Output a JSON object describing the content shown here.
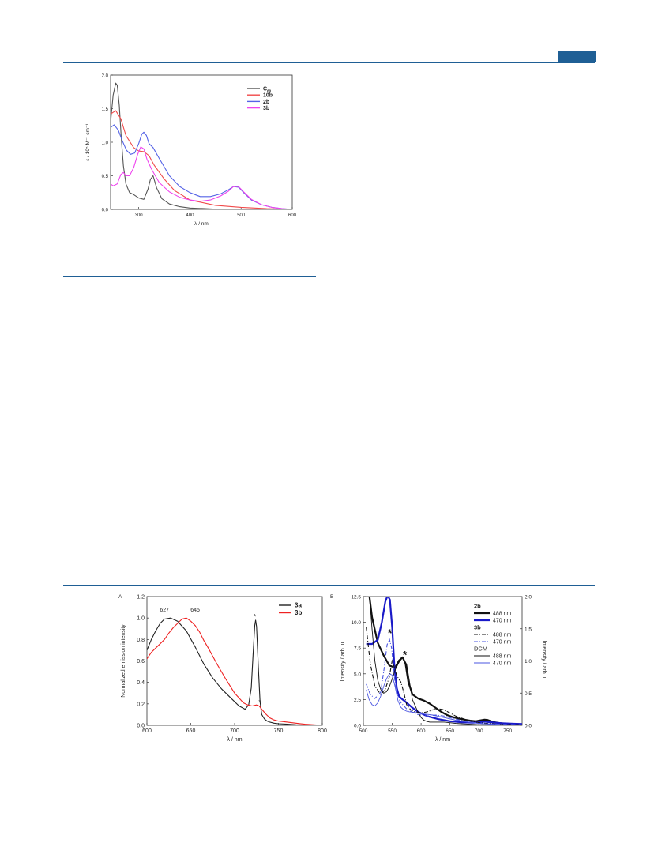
{
  "page": {
    "header_tab_color": "#1f5f95",
    "rule_color": "#1f5f95"
  },
  "chart_data": [
    {
      "id": "uv-vis",
      "type": "line",
      "title": "",
      "xlabel": "λ / nm",
      "ylabel": "ε / 10⁵ M⁻¹ cm⁻¹",
      "xlim": [
        245,
        600
      ],
      "ylim": [
        0,
        2.0
      ],
      "xticks": [
        300,
        400,
        500,
        600
      ],
      "yticks": [
        0.0,
        0.5,
        1.0,
        1.5,
        2.0
      ],
      "ytick_labels": [
        "0.0",
        "0.5",
        "1.0",
        "1.5",
        "2.0"
      ],
      "grid": false,
      "legend_position": "top-right",
      "series": [
        {
          "name": "C60",
          "name_main": "C",
          "name_sub": "60",
          "color": "#555555",
          "x": [
            245,
            250,
            255,
            258,
            262,
            266,
            270,
            275,
            282,
            290,
            300,
            310,
            318,
            323,
            328,
            335,
            345,
            360,
            380,
            400,
            430,
            460
          ],
          "y": [
            1.3,
            1.7,
            1.88,
            1.85,
            1.55,
            1.05,
            0.65,
            0.38,
            0.25,
            0.22,
            0.17,
            0.15,
            0.3,
            0.45,
            0.5,
            0.32,
            0.16,
            0.08,
            0.04,
            0.02,
            0.01,
            0.0
          ]
        },
        {
          "name": "10b",
          "color": "#f04a4a",
          "x": [
            245,
            255,
            265,
            275,
            290,
            300,
            310,
            320,
            330,
            350,
            370,
            400,
            450,
            500,
            550,
            600
          ],
          "y": [
            1.42,
            1.47,
            1.35,
            1.1,
            0.92,
            0.87,
            0.86,
            0.8,
            0.66,
            0.45,
            0.28,
            0.14,
            0.06,
            0.03,
            0.01,
            0.0
          ]
        },
        {
          "name": "2b",
          "color": "#5563e6",
          "x": [
            245,
            252,
            260,
            268,
            276,
            284,
            292,
            300,
            306,
            310,
            315,
            320,
            328,
            340,
            360,
            380,
            400,
            420,
            440,
            460,
            475,
            485,
            495,
            505,
            520,
            540,
            560,
            580,
            600
          ],
          "y": [
            1.22,
            1.26,
            1.18,
            1.02,
            0.88,
            0.82,
            0.84,
            0.98,
            1.12,
            1.15,
            1.1,
            0.98,
            0.92,
            0.76,
            0.5,
            0.34,
            0.25,
            0.19,
            0.19,
            0.23,
            0.29,
            0.34,
            0.33,
            0.25,
            0.14,
            0.07,
            0.03,
            0.01,
            0.0
          ]
        },
        {
          "name": "3b",
          "color": "#ee44ee",
          "x": [
            245,
            250,
            258,
            265,
            270,
            275,
            282,
            290,
            298,
            304,
            310,
            316,
            325,
            340,
            360,
            380,
            400,
            420,
            440,
            460,
            475,
            485,
            495,
            505,
            520,
            540,
            560,
            580,
            600
          ],
          "y": [
            0.38,
            0.35,
            0.38,
            0.52,
            0.55,
            0.5,
            0.5,
            0.62,
            0.82,
            0.93,
            0.9,
            0.75,
            0.6,
            0.4,
            0.26,
            0.18,
            0.14,
            0.12,
            0.14,
            0.2,
            0.27,
            0.34,
            0.34,
            0.26,
            0.15,
            0.07,
            0.03,
            0.01,
            0.0
          ]
        }
      ]
    },
    {
      "id": "emission-A",
      "type": "line",
      "panel_label": "A",
      "title": "",
      "xlabel": "λ / nm",
      "ylabel": "Normalized emission intensity",
      "xlim": [
        600,
        800
      ],
      "ylim": [
        0,
        1.2
      ],
      "xticks": [
        600,
        650,
        700,
        750,
        800
      ],
      "yticks": [
        0.0,
        0.2,
        0.4,
        0.6,
        0.8,
        1.0,
        1.2
      ],
      "ytick_labels": [
        "0.0",
        "0.2",
        "0.4",
        "0.6",
        "0.8",
        "1.0",
        "1.2"
      ],
      "grid": false,
      "legend_position": "top-right",
      "annotations": [
        {
          "text": "627",
          "x": 620,
          "y": 1.06
        },
        {
          "text": "645",
          "x": 655,
          "y": 1.06
        },
        {
          "text": "*",
          "x": 723,
          "y": 1.02
        },
        {
          "text": "*",
          "x": 729,
          "y": 0.22
        }
      ],
      "series": [
        {
          "name": "3a",
          "color": "#222222",
          "x": [
            600,
            605,
            610,
            615,
            620,
            627,
            635,
            645,
            655,
            665,
            675,
            685,
            695,
            705,
            712,
            716,
            719,
            721,
            723,
            724,
            725,
            727,
            729,
            731,
            734,
            737,
            740,
            745,
            750,
            760,
            770,
            780,
            790,
            800
          ],
          "y": [
            0.7,
            0.8,
            0.88,
            0.95,
            0.99,
            1.0,
            0.97,
            0.88,
            0.73,
            0.57,
            0.44,
            0.34,
            0.26,
            0.18,
            0.15,
            0.19,
            0.35,
            0.65,
            0.93,
            0.98,
            0.92,
            0.55,
            0.22,
            0.1,
            0.06,
            0.04,
            0.03,
            0.02,
            0.015,
            0.01,
            0.005,
            0.003,
            0.002,
            0.001
          ]
        },
        {
          "name": "3b",
          "color": "#ee2222",
          "x": [
            600,
            605,
            610,
            615,
            620,
            625,
            630,
            635,
            640,
            645,
            650,
            655,
            660,
            665,
            670,
            680,
            690,
            700,
            710,
            715,
            720,
            725,
            728,
            731,
            735,
            740,
            745,
            750,
            760,
            770,
            780,
            790,
            800
          ],
          "y": [
            0.62,
            0.68,
            0.72,
            0.76,
            0.8,
            0.86,
            0.91,
            0.95,
            0.99,
            1.0,
            0.97,
            0.93,
            0.87,
            0.79,
            0.72,
            0.57,
            0.43,
            0.3,
            0.21,
            0.19,
            0.18,
            0.19,
            0.18,
            0.15,
            0.11,
            0.07,
            0.05,
            0.04,
            0.03,
            0.02,
            0.01,
            0.005,
            0.0
          ]
        }
      ]
    },
    {
      "id": "emission-B",
      "type": "line",
      "panel_label": "B",
      "title": "",
      "xlabel": "λ / nm",
      "ylabel": "Intensity / arb. u.",
      "ylabel_right": "Intensity / arb. u.",
      "xlim": [
        500,
        775
      ],
      "ylim": [
        0,
        12.5
      ],
      "ylim_right": [
        0,
        2.0
      ],
      "xticks": [
        500,
        550,
        600,
        650,
        700,
        750
      ],
      "yticks": [
        0.0,
        2.5,
        5.0,
        7.5,
        10.0,
        12.5
      ],
      "ytick_labels": [
        "0.0",
        "2.5",
        "5.0",
        "7.5",
        "10.0",
        "12.5"
      ],
      "yticks_right": [
        0.0,
        0.5,
        1.0,
        1.5,
        2.0
      ],
      "ytick_labels_right": [
        "0.0",
        "0.5",
        "1.0",
        "1.5",
        "2.0"
      ],
      "grid": false,
      "legend_position": "top-right",
      "legend_groups": [
        "2b",
        "3b",
        "DCM"
      ],
      "annotations": [
        {
          "text": "*",
          "x": 546,
          "y": 8.9
        },
        {
          "text": "*",
          "x": 572,
          "y": 6.8
        }
      ],
      "series": [
        {
          "name": "488 nm",
          "group": "2b",
          "color": "#111111",
          "style": "solid",
          "width": 2.2,
          "x": [
            505,
            515,
            525,
            535,
            545,
            555,
            562,
            568,
            573,
            578,
            585,
            595,
            605,
            615,
            625,
            635,
            645,
            655,
            665,
            675,
            685,
            695,
            700,
            705,
            710,
            715,
            720,
            725,
            735,
            750,
            765,
            775
          ],
          "y": [
            15,
            10.5,
            8.0,
            6.8,
            5.8,
            5.6,
            6.3,
            6.6,
            6.0,
            4.2,
            3.0,
            2.6,
            2.4,
            2.1,
            1.7,
            1.3,
            1.0,
            0.8,
            0.65,
            0.55,
            0.45,
            0.4,
            0.45,
            0.5,
            0.55,
            0.52,
            0.42,
            0.32,
            0.22,
            0.15,
            0.12,
            0.1
          ]
        },
        {
          "name": "470 nm",
          "group": "2b",
          "color": "#1a1ac8",
          "style": "solid",
          "width": 2.2,
          "x": [
            505,
            515,
            525,
            532,
            538,
            542,
            546,
            550,
            554,
            558,
            562,
            568,
            575,
            585,
            595,
            610,
            630,
            650,
            670,
            690,
            700,
            710,
            720,
            740,
            760,
            775
          ],
          "y": [
            7.9,
            7.9,
            8.3,
            10.0,
            12.0,
            12.6,
            12.2,
            9.5,
            5.5,
            3.6,
            2.8,
            2.5,
            2.2,
            1.7,
            1.3,
            0.9,
            0.6,
            0.4,
            0.3,
            0.25,
            0.3,
            0.35,
            0.3,
            0.2,
            0.15,
            0.12
          ]
        },
        {
          "name": "488 nm",
          "group": "3b",
          "color": "#111111",
          "style": "dashdot",
          "width": 1.1,
          "x": [
            505,
            512,
            520,
            530,
            538,
            545,
            550,
            558,
            565,
            570,
            575,
            582,
            590,
            600,
            610,
            620,
            630,
            640,
            650,
            660,
            675,
            690,
            710,
            730,
            750,
            775
          ],
          "y": [
            9.5,
            6.0,
            3.8,
            3.0,
            3.5,
            4.7,
            6.3,
            4.8,
            4.2,
            3.2,
            2.0,
            1.5,
            1.3,
            1.2,
            1.3,
            1.5,
            1.6,
            1.5,
            1.2,
            0.9,
            0.6,
            0.35,
            0.2,
            0.12,
            0.08,
            0.05
          ]
        },
        {
          "name": "470 nm",
          "group": "3b",
          "color": "#4a55e0",
          "style": "dashdot",
          "width": 1.1,
          "x": [
            505,
            512,
            520,
            530,
            536,
            541,
            545,
            549,
            553,
            558,
            565,
            575,
            590,
            610,
            625,
            640,
            660,
            680,
            700,
            720,
            750,
            775
          ],
          "y": [
            4.0,
            3.0,
            2.6,
            3.2,
            5.5,
            7.8,
            8.4,
            7.5,
            5.0,
            3.0,
            2.2,
            1.6,
            1.1,
            0.9,
            1.0,
            0.9,
            0.6,
            0.35,
            0.2,
            0.12,
            0.08,
            0.05
          ]
        },
        {
          "name": "488 nm",
          "group": "DCM",
          "color": "#111111",
          "style": "solid",
          "width": 0.9,
          "axis": "right",
          "x": [
            505,
            510,
            515,
            520,
            525,
            530,
            535,
            540,
            545,
            550,
            555,
            562,
            568,
            575,
            585,
            595,
            600,
            605,
            610,
            615,
            620,
            625,
            630,
            635,
            640,
            650,
            660,
            670,
            680,
            690,
            700,
            720,
            740,
            760,
            775
          ],
          "y": [
            2.6,
            2.1,
            1.5,
            1.0,
            0.7,
            0.56,
            0.5,
            0.52,
            0.6,
            0.72,
            0.86,
            0.98,
            1.05,
            0.95,
            0.4,
            0.2,
            0.12,
            0.08,
            0.06,
            0.05,
            0.05,
            0.05,
            0.05,
            0.05,
            0.05,
            0.04,
            0.03,
            0.025,
            0.02,
            0.015,
            0.01,
            0.01,
            0.005,
            0.005,
            0.0
          ]
        },
        {
          "name": "470 nm",
          "group": "DCM",
          "color": "#4a55e0",
          "style": "solid",
          "width": 0.9,
          "axis": "right",
          "x": [
            505,
            510,
            515,
            520,
            525,
            530,
            535,
            540,
            545,
            550,
            555,
            560,
            565,
            570,
            575,
            580,
            590,
            600,
            610,
            620,
            640,
            660,
            680,
            700,
            720,
            740,
            760,
            775
          ],
          "y": [
            0.55,
            0.4,
            0.32,
            0.3,
            0.35,
            0.45,
            0.6,
            0.72,
            0.8,
            0.78,
            0.6,
            0.38,
            0.28,
            0.24,
            0.22,
            0.21,
            0.2,
            0.18,
            0.17,
            0.16,
            0.12,
            0.08,
            0.05,
            0.03,
            0.02,
            0.01,
            0.005,
            0.0
          ]
        }
      ]
    }
  ]
}
